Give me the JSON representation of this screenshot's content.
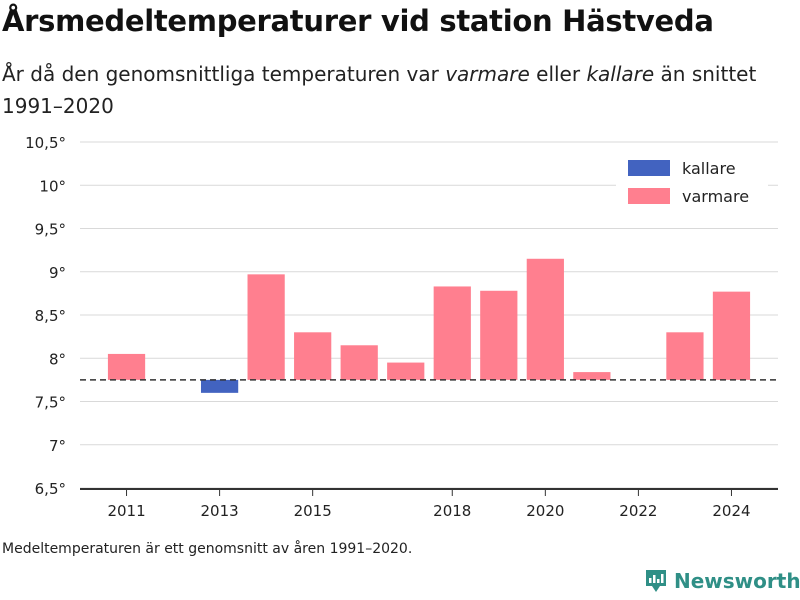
{
  "header": {
    "title": "Årsmedeltemperaturer vid station Hästveda",
    "subtitle_part1": "År då den genomsnittliga temperaturen var ",
    "subtitle_warm": "varmare",
    "subtitle_part2": " eller ",
    "subtitle_cold": "kallare",
    "subtitle_part3": " än snittet 1991–2020"
  },
  "footnote": "Medeltemperaturen är ett genomsnitt av åren 1991–2020.",
  "brand": {
    "name": "Newsworthy",
    "icon": "newsworthy-logo-icon"
  },
  "colors": {
    "warmer": "#ff7f8f",
    "colder": "#4263c0",
    "brand": "#2f8f86"
  },
  "chart_data": {
    "type": "bar",
    "baseline": 7.75,
    "ylim": [
      6.5,
      10.5
    ],
    "yticks": [
      6.5,
      7,
      7.5,
      8,
      8.5,
      9,
      9.5,
      10,
      10.5
    ],
    "ytick_labels": [
      "6,5°",
      "7°",
      "7,5°",
      "8°",
      "8,5°",
      "9°",
      "9,5°",
      "10°",
      "10,5°"
    ],
    "xlim": [
      2010,
      2025
    ],
    "xticks": [
      2011,
      2013,
      2015,
      2018,
      2020,
      2022,
      2024
    ],
    "xtick_labels": [
      "2011",
      "2013",
      "2015",
      "2018",
      "2020",
      "2022",
      "2024"
    ],
    "legend_position": "top-right",
    "legend": [
      {
        "key": "colder",
        "label": "kallare"
      },
      {
        "key": "warmer",
        "label": "varmare"
      }
    ],
    "bars": [
      {
        "x": 2011,
        "value": 8.05
      },
      {
        "x": 2013,
        "value": 7.6
      },
      {
        "x": 2014,
        "value": 8.97
      },
      {
        "x": 2015,
        "value": 8.3
      },
      {
        "x": 2016,
        "value": 8.15
      },
      {
        "x": 2017,
        "value": 7.95
      },
      {
        "x": 2018,
        "value": 8.83
      },
      {
        "x": 2019,
        "value": 8.78
      },
      {
        "x": 2020,
        "value": 9.15
      },
      {
        "x": 2021,
        "value": 7.84
      },
      {
        "x": 2023,
        "value": 8.3
      },
      {
        "x": 2024,
        "value": 8.77
      }
    ]
  }
}
